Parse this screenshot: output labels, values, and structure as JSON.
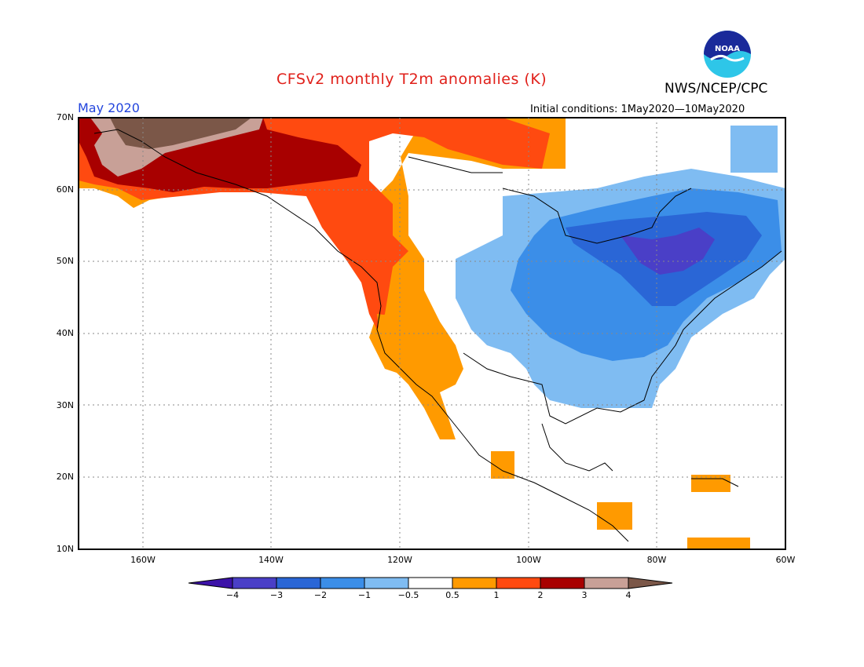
{
  "header": {
    "title": "CFSv2 monthly T2m anomalies (K)",
    "org": "NWS/NCEP/CPC",
    "month": "May 2020",
    "initial_conditions": "Initial conditions: 1May2020—10May2020",
    "logo_text": "NOAA"
  },
  "axes": {
    "lat_labels": [
      "70N",
      "60N",
      "50N",
      "40N",
      "30N",
      "20N",
      "10N"
    ],
    "lon_labels": [
      "160W",
      "140W",
      "120W",
      "100W",
      "80W",
      "60W"
    ]
  },
  "colorbar": {
    "labels": [
      "−4",
      "−3",
      "−2",
      "−1",
      "−0.5",
      "0.5",
      "1",
      "2",
      "3",
      "4"
    ],
    "colors": [
      "#3c12a8",
      "#4a3fc7",
      "#2a66d6",
      "#3b8ee8",
      "#7fbcf2",
      "#ffffff",
      "#ff9a00",
      "#ff4a10",
      "#a80000",
      "#c8a097",
      "#7b5748"
    ]
  },
  "map": {
    "region": "North America",
    "lat_range": [
      10,
      70
    ],
    "lon_range": [
      -170,
      -60
    ]
  }
}
